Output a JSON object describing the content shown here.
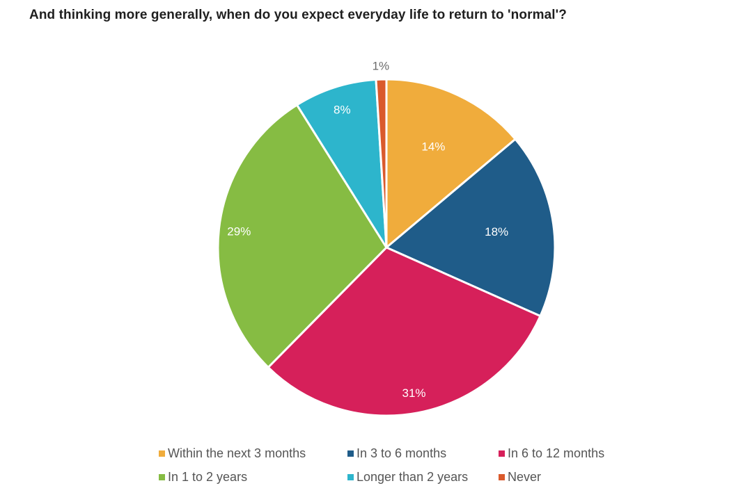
{
  "chart_data": {
    "type": "pie",
    "title": "And thinking more generally, when do you expect everyday life to return to 'normal'?",
    "categories": [
      "Within the next 3 months",
      "In 3 to 6 months",
      "In 6 to 12 months",
      "In 1 to 2 years",
      "Longer than 2 years",
      "Never"
    ],
    "values": [
      14,
      18,
      31,
      29,
      8,
      1
    ],
    "value_labels": [
      "14%",
      "18%",
      "31%",
      "29%",
      "8%",
      "1%"
    ],
    "colors": [
      "#F0AC3C",
      "#1F5C89",
      "#D6205A",
      "#86BC43",
      "#2DB5CC",
      "#DA5A2C"
    ],
    "start": "12 o'clock",
    "direction": "clockwise",
    "legend_position": "bottom"
  }
}
